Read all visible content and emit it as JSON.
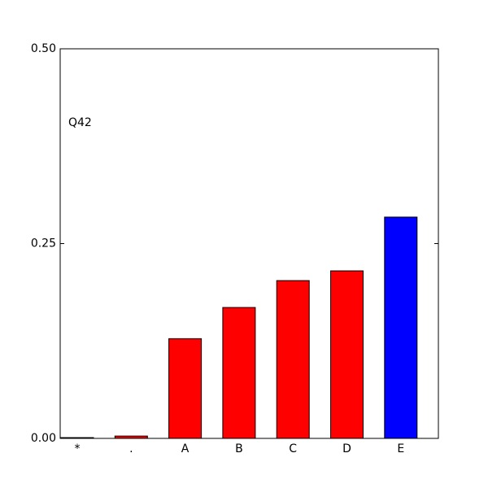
{
  "chart_data": {
    "type": "bar",
    "annotation": "Q42",
    "categories": [
      "*",
      ".",
      "A",
      "B",
      "C",
      "D",
      "E"
    ],
    "values": [
      0.001,
      0.003,
      0.128,
      0.168,
      0.2025,
      0.215,
      0.284
    ],
    "colors": [
      "#ff0000",
      "#ff0000",
      "#ff0000",
      "#ff0000",
      "#ff0000",
      "#ff0000",
      "#0000ff"
    ],
    "ylim": [
      0,
      0.5
    ],
    "yticks": [
      {
        "value": 0,
        "label": "0.00"
      },
      {
        "value": 0.25,
        "label": "0.25"
      },
      {
        "value": 0.5,
        "label": "0.50"
      }
    ],
    "grid": false
  }
}
